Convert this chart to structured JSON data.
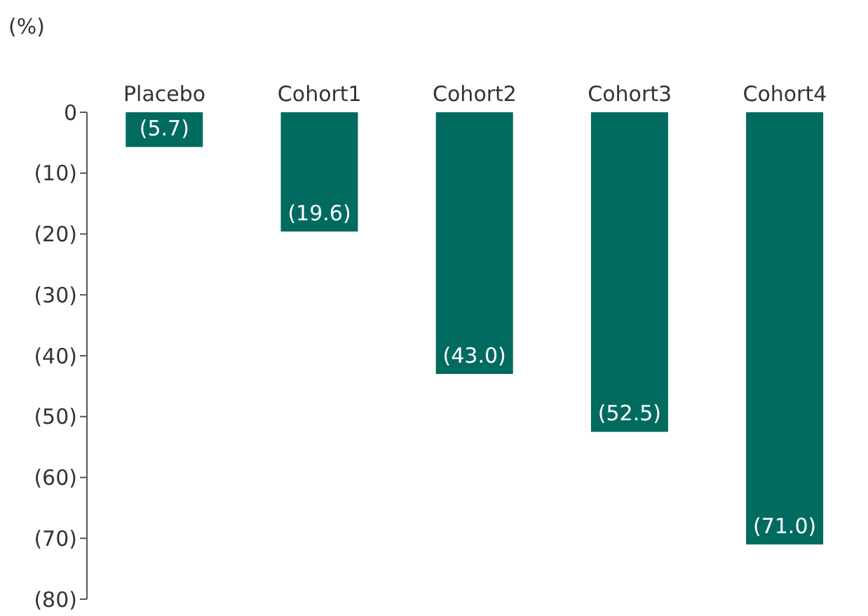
{
  "chart_data": {
    "type": "bar",
    "ylabel": "(%)",
    "categories": [
      "Placebo",
      "Cohort1",
      "Cohort2",
      "Cohort3",
      "Cohort4"
    ],
    "values": [
      -5.7,
      -19.6,
      -43.0,
      -52.5,
      -71.0
    ],
    "value_labels": [
      "(5.7)",
      "(19.6)",
      "(43.0)",
      "(52.5)",
      "(71.0)"
    ],
    "color": "#006b5e",
    "ylim": [
      -80,
      0
    ],
    "yticks": [
      {
        "value": 0,
        "label": "0"
      },
      {
        "value": -10,
        "label": "(10)"
      },
      {
        "value": -20,
        "label": "(20)"
      },
      {
        "value": -30,
        "label": "(30)"
      },
      {
        "value": -40,
        "label": "(40)"
      },
      {
        "value": -50,
        "label": "(50)"
      },
      {
        "value": -60,
        "label": "(60)"
      },
      {
        "value": -70,
        "label": "(70)"
      },
      {
        "value": -80,
        "label": "(80)"
      }
    ],
    "grid": false,
    "legend": false
  }
}
